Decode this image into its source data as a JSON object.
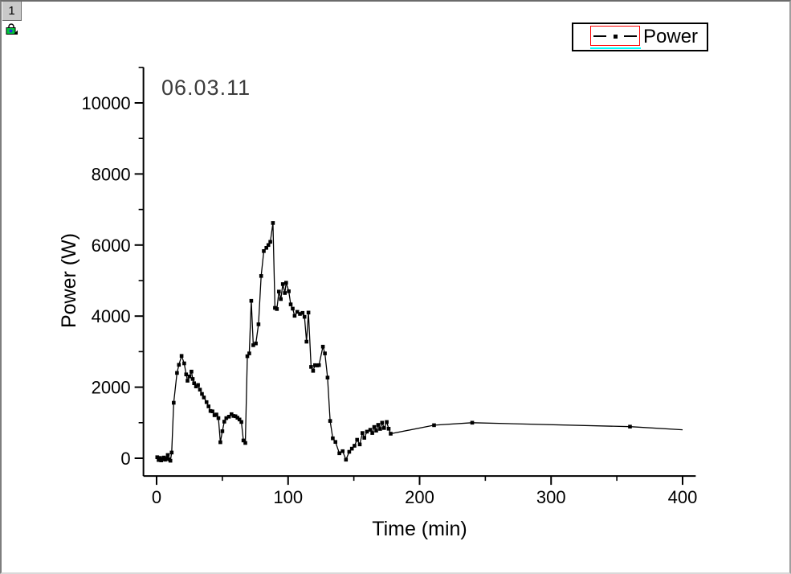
{
  "window": {
    "layer_badge": "1"
  },
  "icons": {
    "lock": {
      "name": "lock-icon",
      "state": "locked",
      "body_color": "#00c83c",
      "dot_color": "#2430d8",
      "arrow_color": "#000000"
    }
  },
  "annotation": {
    "text": "06.03.11",
    "color": "#3c3c3c"
  },
  "legend": {
    "label": "Power",
    "symbol": "line-square-line",
    "symbol_color": "#000000",
    "selection_border_color": "#ff0000",
    "selection_underline_color": "#00ffff"
  },
  "chart_data": {
    "type": "line",
    "title": "",
    "xlabel": "Time (min)",
    "ylabel": "Power (W)",
    "xlim": [
      -10,
      410
    ],
    "ylim": [
      -500,
      11000
    ],
    "x_ticks": [
      0,
      100,
      200,
      300,
      400
    ],
    "x_minor_ticks": [
      50,
      150,
      250,
      350
    ],
    "y_ticks": [
      0,
      2000,
      4000,
      6000,
      8000,
      10000
    ],
    "y_minor_ticks": [
      1000,
      3000,
      5000,
      7000,
      9000,
      11000
    ],
    "grid": false,
    "legend_position": "top-right",
    "series": [
      {
        "name": "Power",
        "color": "#000000",
        "marker": "filled-square",
        "line_style": "solid",
        "last_point_has_marker": false,
        "points": [
          [
            0.5,
            30
          ],
          [
            1.5,
            -50
          ],
          [
            2.5,
            10
          ],
          [
            3.5,
            -60
          ],
          [
            4.5,
            -20
          ],
          [
            5.5,
            20
          ],
          [
            6.5,
            -40
          ],
          [
            7.5,
            -10
          ],
          [
            8.5,
            90
          ],
          [
            9.5,
            -30
          ],
          [
            10.5,
            -70
          ],
          [
            11.5,
            160
          ],
          [
            13,
            1560
          ],
          [
            15.5,
            2400
          ],
          [
            17,
            2630
          ],
          [
            19,
            2880
          ],
          [
            21,
            2670
          ],
          [
            22.5,
            2360
          ],
          [
            23.5,
            2180
          ],
          [
            25,
            2300
          ],
          [
            26.5,
            2440
          ],
          [
            27.5,
            2230
          ],
          [
            28.5,
            2110
          ],
          [
            30,
            2020
          ],
          [
            31.5,
            2060
          ],
          [
            33,
            1930
          ],
          [
            34.5,
            1810
          ],
          [
            36,
            1710
          ],
          [
            38,
            1580
          ],
          [
            39.5,
            1460
          ],
          [
            41,
            1330
          ],
          [
            42.5,
            1320
          ],
          [
            44,
            1210
          ],
          [
            45.5,
            1230
          ],
          [
            47,
            1130
          ],
          [
            48.5,
            450
          ],
          [
            50,
            760
          ],
          [
            51.5,
            1030
          ],
          [
            53,
            1130
          ],
          [
            55,
            1170
          ],
          [
            57,
            1240
          ],
          [
            58.5,
            1190
          ],
          [
            60,
            1180
          ],
          [
            61.5,
            1140
          ],
          [
            63,
            1090
          ],
          [
            64.5,
            1020
          ],
          [
            66,
            500
          ],
          [
            67.5,
            430
          ],
          [
            69,
            2870
          ],
          [
            70.5,
            2950
          ],
          [
            72,
            4430
          ],
          [
            73.5,
            3180
          ],
          [
            75.5,
            3230
          ],
          [
            77.5,
            3770
          ],
          [
            79.5,
            5130
          ],
          [
            81.5,
            5830
          ],
          [
            83.5,
            5920
          ],
          [
            85,
            6000
          ],
          [
            86.5,
            6090
          ],
          [
            88.5,
            6620
          ],
          [
            90,
            4230
          ],
          [
            91.5,
            4200
          ],
          [
            93,
            4690
          ],
          [
            94.5,
            4480
          ],
          [
            96,
            4900
          ],
          [
            97.5,
            4650
          ],
          [
            98.5,
            4940
          ],
          [
            100.5,
            4700
          ],
          [
            102,
            4330
          ],
          [
            103.5,
            4210
          ],
          [
            105,
            4010
          ],
          [
            107,
            4120
          ],
          [
            109,
            4060
          ],
          [
            111,
            4090
          ],
          [
            112.5,
            3980
          ],
          [
            114,
            3280
          ],
          [
            115.5,
            4100
          ],
          [
            117.5,
            2570
          ],
          [
            119,
            2460
          ],
          [
            120.5,
            2620
          ],
          [
            122,
            2610
          ],
          [
            123.5,
            2620
          ],
          [
            126.5,
            3140
          ],
          [
            128,
            2950
          ],
          [
            130,
            2270
          ],
          [
            132,
            1050
          ],
          [
            134,
            560
          ],
          [
            136,
            460
          ],
          [
            139,
            140
          ],
          [
            141.5,
            200
          ],
          [
            144,
            -40
          ],
          [
            146.5,
            180
          ],
          [
            148.5,
            270
          ],
          [
            150.5,
            350
          ],
          [
            152.5,
            520
          ],
          [
            154.5,
            390
          ],
          [
            156.5,
            710
          ],
          [
            158,
            575
          ],
          [
            160,
            750
          ],
          [
            162.5,
            800
          ],
          [
            164,
            710
          ],
          [
            165.5,
            880
          ],
          [
            167,
            775
          ],
          [
            168.5,
            940
          ],
          [
            170,
            825
          ],
          [
            171.5,
            1000
          ],
          [
            173,
            850
          ],
          [
            175,
            1020
          ],
          [
            176.5,
            830
          ],
          [
            178,
            690
          ],
          [
            211,
            930
          ],
          [
            240,
            1000
          ],
          [
            360,
            890
          ],
          [
            400,
            800
          ]
        ]
      }
    ]
  }
}
